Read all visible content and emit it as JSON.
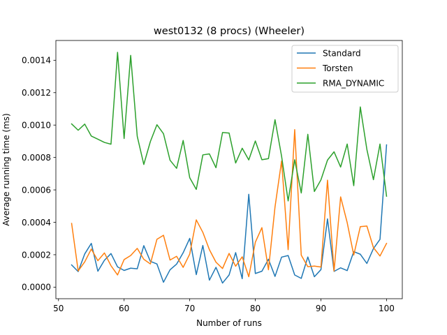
{
  "chart_data": {
    "type": "line",
    "title": "west0132 (8 procs) (Wheeler)",
    "xlabel": "Number of runs",
    "ylabel": "Average running time (ms)",
    "xlim": [
      49.6,
      102.4
    ],
    "ylim": [
      -7.15e-05,
      0.001522
    ],
    "xticks": [
      50,
      60,
      70,
      80,
      90,
      100
    ],
    "yticks": [
      0.0,
      0.0002,
      0.0004,
      0.0006,
      0.0008,
      0.001,
      0.0012,
      0.0014
    ],
    "ytick_labels": [
      "0.0000",
      "0.0002",
      "0.0004",
      "0.0006",
      "0.0008",
      "0.0010",
      "0.0012",
      "0.0014"
    ],
    "legend_position": "top-right",
    "grid": false,
    "x": [
      52,
      53,
      54,
      55,
      56,
      57,
      58,
      59,
      60,
      61,
      62,
      63,
      64,
      65,
      66,
      67,
      68,
      69,
      70,
      71,
      72,
      73,
      74,
      75,
      76,
      77,
      78,
      79,
      80,
      81,
      82,
      83,
      84,
      85,
      86,
      87,
      88,
      89,
      90,
      91,
      92,
      93,
      94,
      95,
      96,
      97,
      98,
      99,
      100
    ],
    "series": [
      {
        "name": "Standard",
        "color": "#1f77b4",
        "values": [
          0.000137,
          9.6e-05,
          0.000205,
          0.00027,
          9.8e-05,
          0.000166,
          0.000207,
          0.000125,
          0.000103,
          0.000117,
          0.000113,
          0.000256,
          0.000159,
          0.000143,
          3e-05,
          0.000107,
          0.000142,
          0.000212,
          0.000301,
          7.7e-05,
          0.000257,
          4.3e-05,
          0.000122,
          2.5e-05,
          7.5e-05,
          0.000213,
          5.2e-05,
          0.000573,
          8.4e-05,
          9.8e-05,
          0.000172,
          6.6e-05,
          0.000185,
          0.000195,
          7.5e-05,
          5.4e-05,
          0.000186,
          6.4e-05,
          0.000108,
          0.000421,
          9.7e-05,
          0.000119,
          0.000102,
          0.000219,
          0.000203,
          0.000146,
          0.000238,
          0.000295,
          0.000878
        ]
      },
      {
        "name": "Torsten",
        "color": "#ff7f0e",
        "values": [
          0.000393,
          0.0001,
          0.000156,
          0.000235,
          0.000163,
          0.000211,
          0.000132,
          7.5e-05,
          0.00017,
          0.000195,
          0.000239,
          0.000172,
          0.000143,
          0.000295,
          0.00032,
          0.000167,
          0.00019,
          0.000122,
          0.000204,
          0.000415,
          0.000338,
          0.000231,
          0.000154,
          0.000115,
          0.000208,
          0.000129,
          0.000187,
          6.4e-05,
          0.000277,
          0.000367,
          0.000107,
          0.000495,
          0.000778,
          0.000231,
          0.000972,
          0.000197,
          0.000126,
          0.00013,
          0.000124,
          0.00066,
          9.9e-05,
          0.000557,
          0.000398,
          0.000198,
          0.000373,
          0.000377,
          0.000244,
          0.000192,
          0.00027
        ]
      },
      {
        "name": "RMA_DYNAMIC",
        "color": "#2ca02c",
        "values": [
          0.001007,
          0.000968,
          0.001006,
          0.000932,
          0.000913,
          0.000893,
          0.000882,
          0.001449,
          0.000917,
          0.00143,
          0.000931,
          0.000757,
          0.000898,
          0.001002,
          0.000947,
          0.000783,
          0.000733,
          0.000905,
          0.000675,
          0.000603,
          0.000816,
          0.000822,
          0.000737,
          0.000954,
          0.000951,
          0.000766,
          0.000857,
          0.000785,
          0.000902,
          0.000786,
          0.000793,
          0.001033,
          0.000808,
          0.000532,
          0.000786,
          0.000581,
          0.000943,
          0.00059,
          0.000662,
          0.000784,
          0.000835,
          0.000741,
          0.000883,
          0.000626,
          0.001112,
          0.00085,
          0.000663,
          0.000883,
          0.000561
        ]
      }
    ]
  }
}
